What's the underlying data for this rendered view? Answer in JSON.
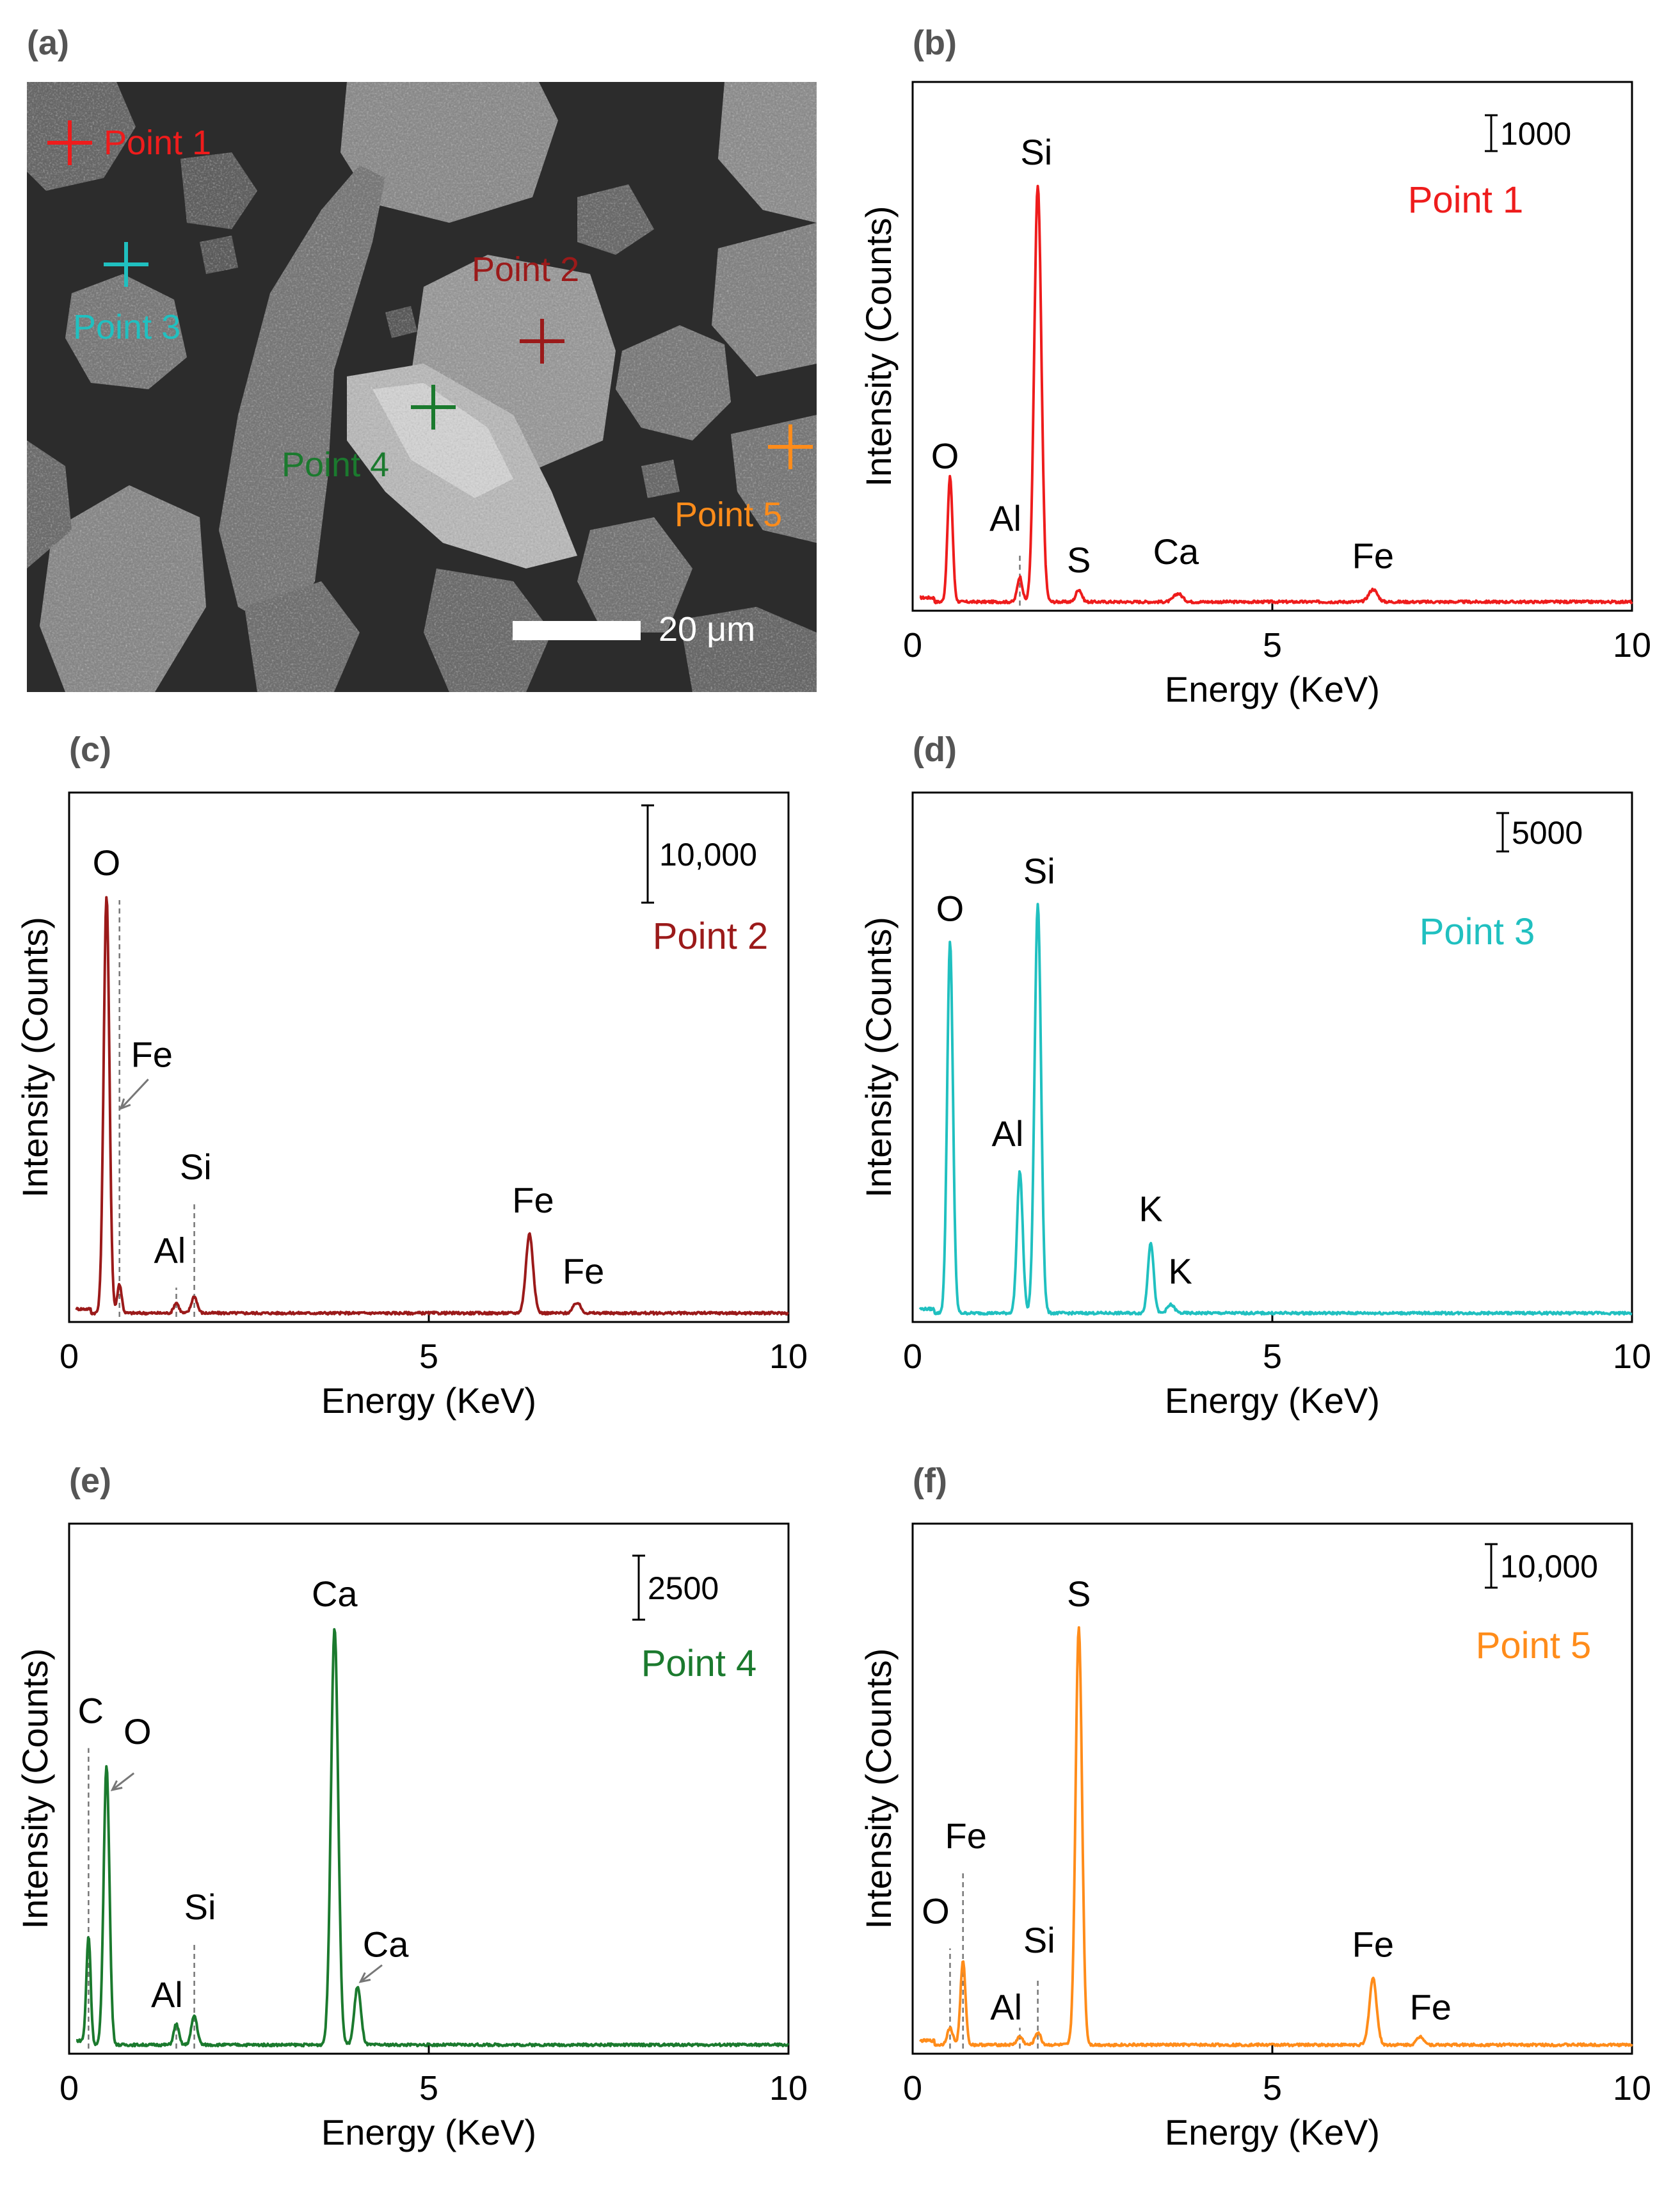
{
  "panels": {
    "a": "(a)",
    "b": "(b)",
    "c": "(c)",
    "d": "(d)",
    "e": "(e)",
    "f": "(f)"
  },
  "sem": {
    "scale_bar": "20 μm",
    "points": [
      {
        "label": "Point 1",
        "color": "#ee1c1c"
      },
      {
        "label": "Point 2",
        "color": "#9b1a1a"
      },
      {
        "label": "Point 3",
        "color": "#20c0c0"
      },
      {
        "label": "Point 4",
        "color": "#1b7a2e"
      },
      {
        "label": "Point 5",
        "color": "#ff8c1a"
      }
    ]
  },
  "chart_data": [
    {
      "panel": "b",
      "type": "line",
      "title": "Point 1",
      "color": "#ee1c1c",
      "xlabel": "Energy (KeV)",
      "ylabel": "Intensity (Counts)",
      "xlim": [
        0,
        10
      ],
      "xticks": [
        0,
        5,
        10
      ],
      "scale_label": "1000",
      "peaks": [
        {
          "x": 0.52,
          "y": 0.3,
          "w": 0.035,
          "label": "O"
        },
        {
          "x": 1.49,
          "y": 0.06,
          "w": 0.035,
          "label": "Al"
        },
        {
          "x": 1.74,
          "y": 1.0,
          "w": 0.05,
          "label": "Si"
        },
        {
          "x": 2.31,
          "y": 0.03,
          "w": 0.04,
          "label": "S"
        },
        {
          "x": 3.69,
          "y": 0.02,
          "w": 0.06,
          "label": "Ca"
        },
        {
          "x": 6.4,
          "y": 0.03,
          "w": 0.06,
          "label": "Fe"
        }
      ],
      "peak_labels": [
        {
          "text": "O",
          "x": 0.45,
          "y": 0.33
        },
        {
          "text": "Al",
          "x": 1.29,
          "y": 0.18
        },
        {
          "text": "Si",
          "x": 1.72,
          "y": 1.06
        },
        {
          "text": "S",
          "x": 2.31,
          "y": 0.08
        },
        {
          "text": "Ca",
          "x": 3.66,
          "y": 0.1
        },
        {
          "text": "Fe",
          "x": 6.4,
          "y": 0.09
        }
      ]
    },
    {
      "panel": "c",
      "type": "line",
      "title": "Point 2",
      "color": "#9b1a1a",
      "xlabel": "Energy (KeV)",
      "ylabel": "Intensity (Counts)",
      "xlim": [
        0,
        10
      ],
      "xticks": [
        0,
        5,
        10
      ],
      "scale_label": "10,000",
      "peaks": [
        {
          "x": 0.52,
          "y": 1.0,
          "w": 0.04,
          "label": "O"
        },
        {
          "x": 0.7,
          "y": 0.07,
          "w": 0.03,
          "label": "Fe"
        },
        {
          "x": 1.49,
          "y": 0.025,
          "w": 0.035,
          "label": "Al"
        },
        {
          "x": 1.74,
          "y": 0.04,
          "w": 0.04,
          "label": "Si"
        },
        {
          "x": 6.4,
          "y": 0.19,
          "w": 0.05,
          "label": "Fe"
        },
        {
          "x": 7.06,
          "y": 0.025,
          "w": 0.05,
          "label": "Fe"
        }
      ],
      "peak_labels": [
        {
          "text": "O",
          "x": 0.52,
          "y": 1.06
        },
        {
          "text": "Fe",
          "x": 1.15,
          "y": 0.6
        },
        {
          "text": "Al",
          "x": 1.4,
          "y": 0.13
        },
        {
          "text": "Si",
          "x": 1.76,
          "y": 0.33
        },
        {
          "text": "Fe",
          "x": 6.45,
          "y": 0.25
        },
        {
          "text": "Fe",
          "x": 7.15,
          "y": 0.08
        }
      ]
    },
    {
      "panel": "d",
      "type": "line",
      "title": "Point 3",
      "color": "#20c0c0",
      "xlabel": "Energy (KeV)",
      "ylabel": "Intensity (Counts)",
      "xlim": [
        0,
        10
      ],
      "xticks": [
        0,
        5,
        10
      ],
      "scale_label": "5000",
      "peaks": [
        {
          "x": 0.52,
          "y": 0.89,
          "w": 0.04,
          "label": "O"
        },
        {
          "x": 1.49,
          "y": 0.34,
          "w": 0.04,
          "label": "Al"
        },
        {
          "x": 1.74,
          "y": 0.98,
          "w": 0.045,
          "label": "Si"
        },
        {
          "x": 3.31,
          "y": 0.17,
          "w": 0.04,
          "label": "K"
        },
        {
          "x": 3.59,
          "y": 0.02,
          "w": 0.05,
          "label": "K"
        }
      ],
      "peak_labels": [
        {
          "text": "O",
          "x": 0.52,
          "y": 0.95
        },
        {
          "text": "Al",
          "x": 1.32,
          "y": 0.41
        },
        {
          "text": "Si",
          "x": 1.76,
          "y": 1.04
        },
        {
          "text": "K",
          "x": 3.31,
          "y": 0.23
        },
        {
          "text": "K",
          "x": 3.72,
          "y": 0.08
        }
      ]
    },
    {
      "panel": "e",
      "type": "line",
      "title": "Point 4",
      "color": "#1b7a2e",
      "xlabel": "Energy (KeV)",
      "ylabel": "Intensity (Counts)",
      "xlim": [
        0,
        10
      ],
      "xticks": [
        0,
        5,
        10
      ],
      "scale_label": "2500",
      "peaks": [
        {
          "x": 0.27,
          "y": 0.25,
          "w": 0.03,
          "label": "C"
        },
        {
          "x": 0.52,
          "y": 0.67,
          "w": 0.04,
          "label": "O"
        },
        {
          "x": 1.49,
          "y": 0.05,
          "w": 0.035,
          "label": "Al"
        },
        {
          "x": 1.74,
          "y": 0.07,
          "w": 0.04,
          "label": "Si"
        },
        {
          "x": 3.69,
          "y": 1.0,
          "w": 0.05,
          "label": "Ca"
        },
        {
          "x": 4.01,
          "y": 0.14,
          "w": 0.045,
          "label": "Ca"
        }
      ],
      "peak_labels": [
        {
          "text": "C",
          "x": 0.3,
          "y": 0.78
        },
        {
          "text": "O",
          "x": 0.95,
          "y": 0.73
        },
        {
          "text": "Al",
          "x": 1.36,
          "y": 0.1
        },
        {
          "text": "Si",
          "x": 1.82,
          "y": 0.31
        },
        {
          "text": "Ca",
          "x": 3.69,
          "y": 1.06
        },
        {
          "text": "Ca",
          "x": 4.4,
          "y": 0.22
        }
      ]
    },
    {
      "panel": "f",
      "type": "line",
      "title": "Point 5",
      "color": "#ff8c1a",
      "xlabel": "Energy (KeV)",
      "ylabel": "Intensity (Counts)",
      "xlim": [
        0,
        10
      ],
      "xticks": [
        0,
        5,
        10
      ],
      "scale_label": "10,000",
      "peaks": [
        {
          "x": 0.52,
          "y": 0.04,
          "w": 0.04,
          "label": "O"
        },
        {
          "x": 0.7,
          "y": 0.2,
          "w": 0.035,
          "label": "Fe"
        },
        {
          "x": 1.49,
          "y": 0.02,
          "w": 0.04,
          "label": "Al"
        },
        {
          "x": 1.74,
          "y": 0.03,
          "w": 0.04,
          "label": "Si"
        },
        {
          "x": 2.31,
          "y": 1.0,
          "w": 0.045,
          "label": "S"
        },
        {
          "x": 6.4,
          "y": 0.16,
          "w": 0.05,
          "label": "Fe"
        },
        {
          "x": 7.06,
          "y": 0.02,
          "w": 0.05,
          "label": "Fe"
        }
      ],
      "peak_labels": [
        {
          "text": "O",
          "x": 0.32,
          "y": 0.3
        },
        {
          "text": "Fe",
          "x": 0.74,
          "y": 0.48
        },
        {
          "text": "Al",
          "x": 1.3,
          "y": 0.07
        },
        {
          "text": "Si",
          "x": 1.76,
          "y": 0.23
        },
        {
          "text": "S",
          "x": 2.31,
          "y": 1.06
        },
        {
          "text": "Fe",
          "x": 6.4,
          "y": 0.22
        },
        {
          "text": "Fe",
          "x": 7.2,
          "y": 0.07
        }
      ]
    }
  ]
}
